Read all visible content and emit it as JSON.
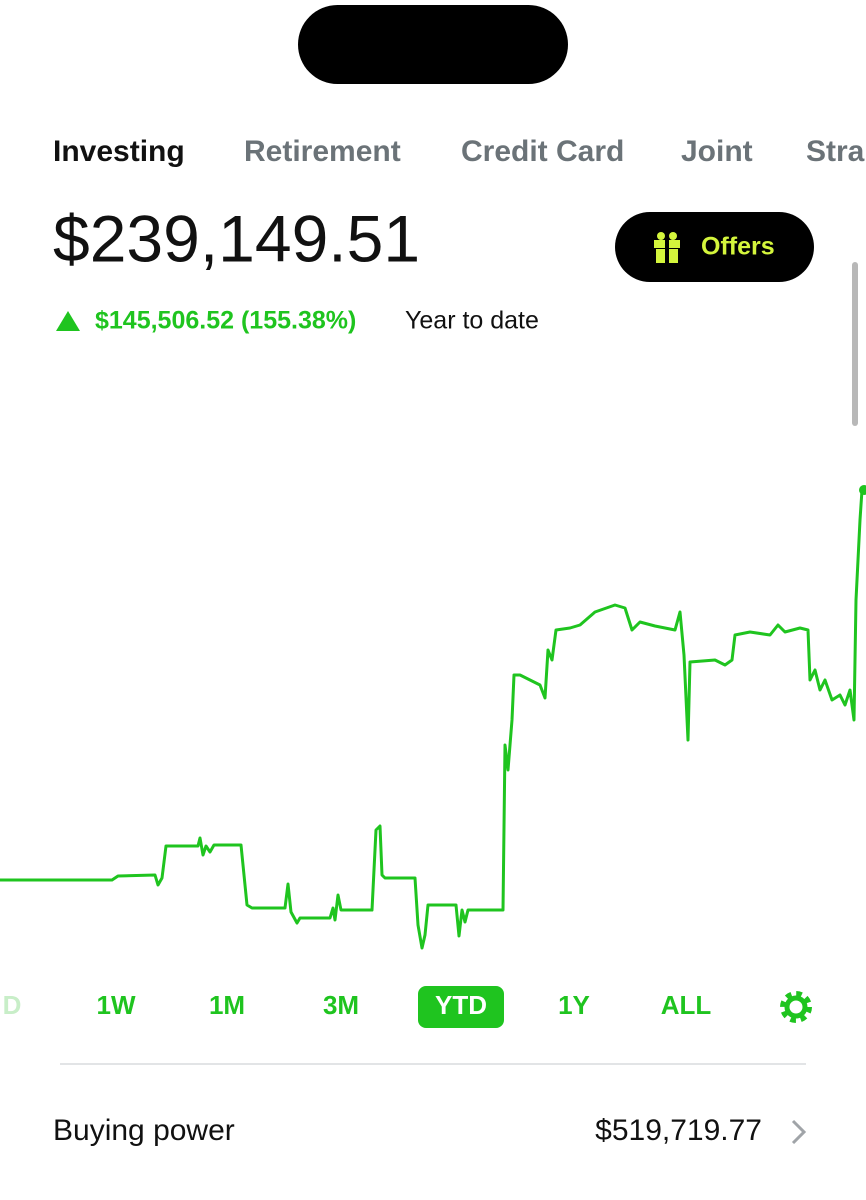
{
  "tabs": [
    "Investing",
    "Retirement",
    "Credit Card",
    "Joint",
    "Stra"
  ],
  "balance": "$239,149.51",
  "offers_button": "Offers",
  "change": {
    "amount": "$145,506.52 (155.38%)",
    "period": "Year to date"
  },
  "ranges": [
    "D",
    "1W",
    "1M",
    "3M",
    "YTD",
    "1Y",
    "ALL"
  ],
  "buying_power": {
    "label": "Buying power",
    "value": "$519,719.77"
  }
}
